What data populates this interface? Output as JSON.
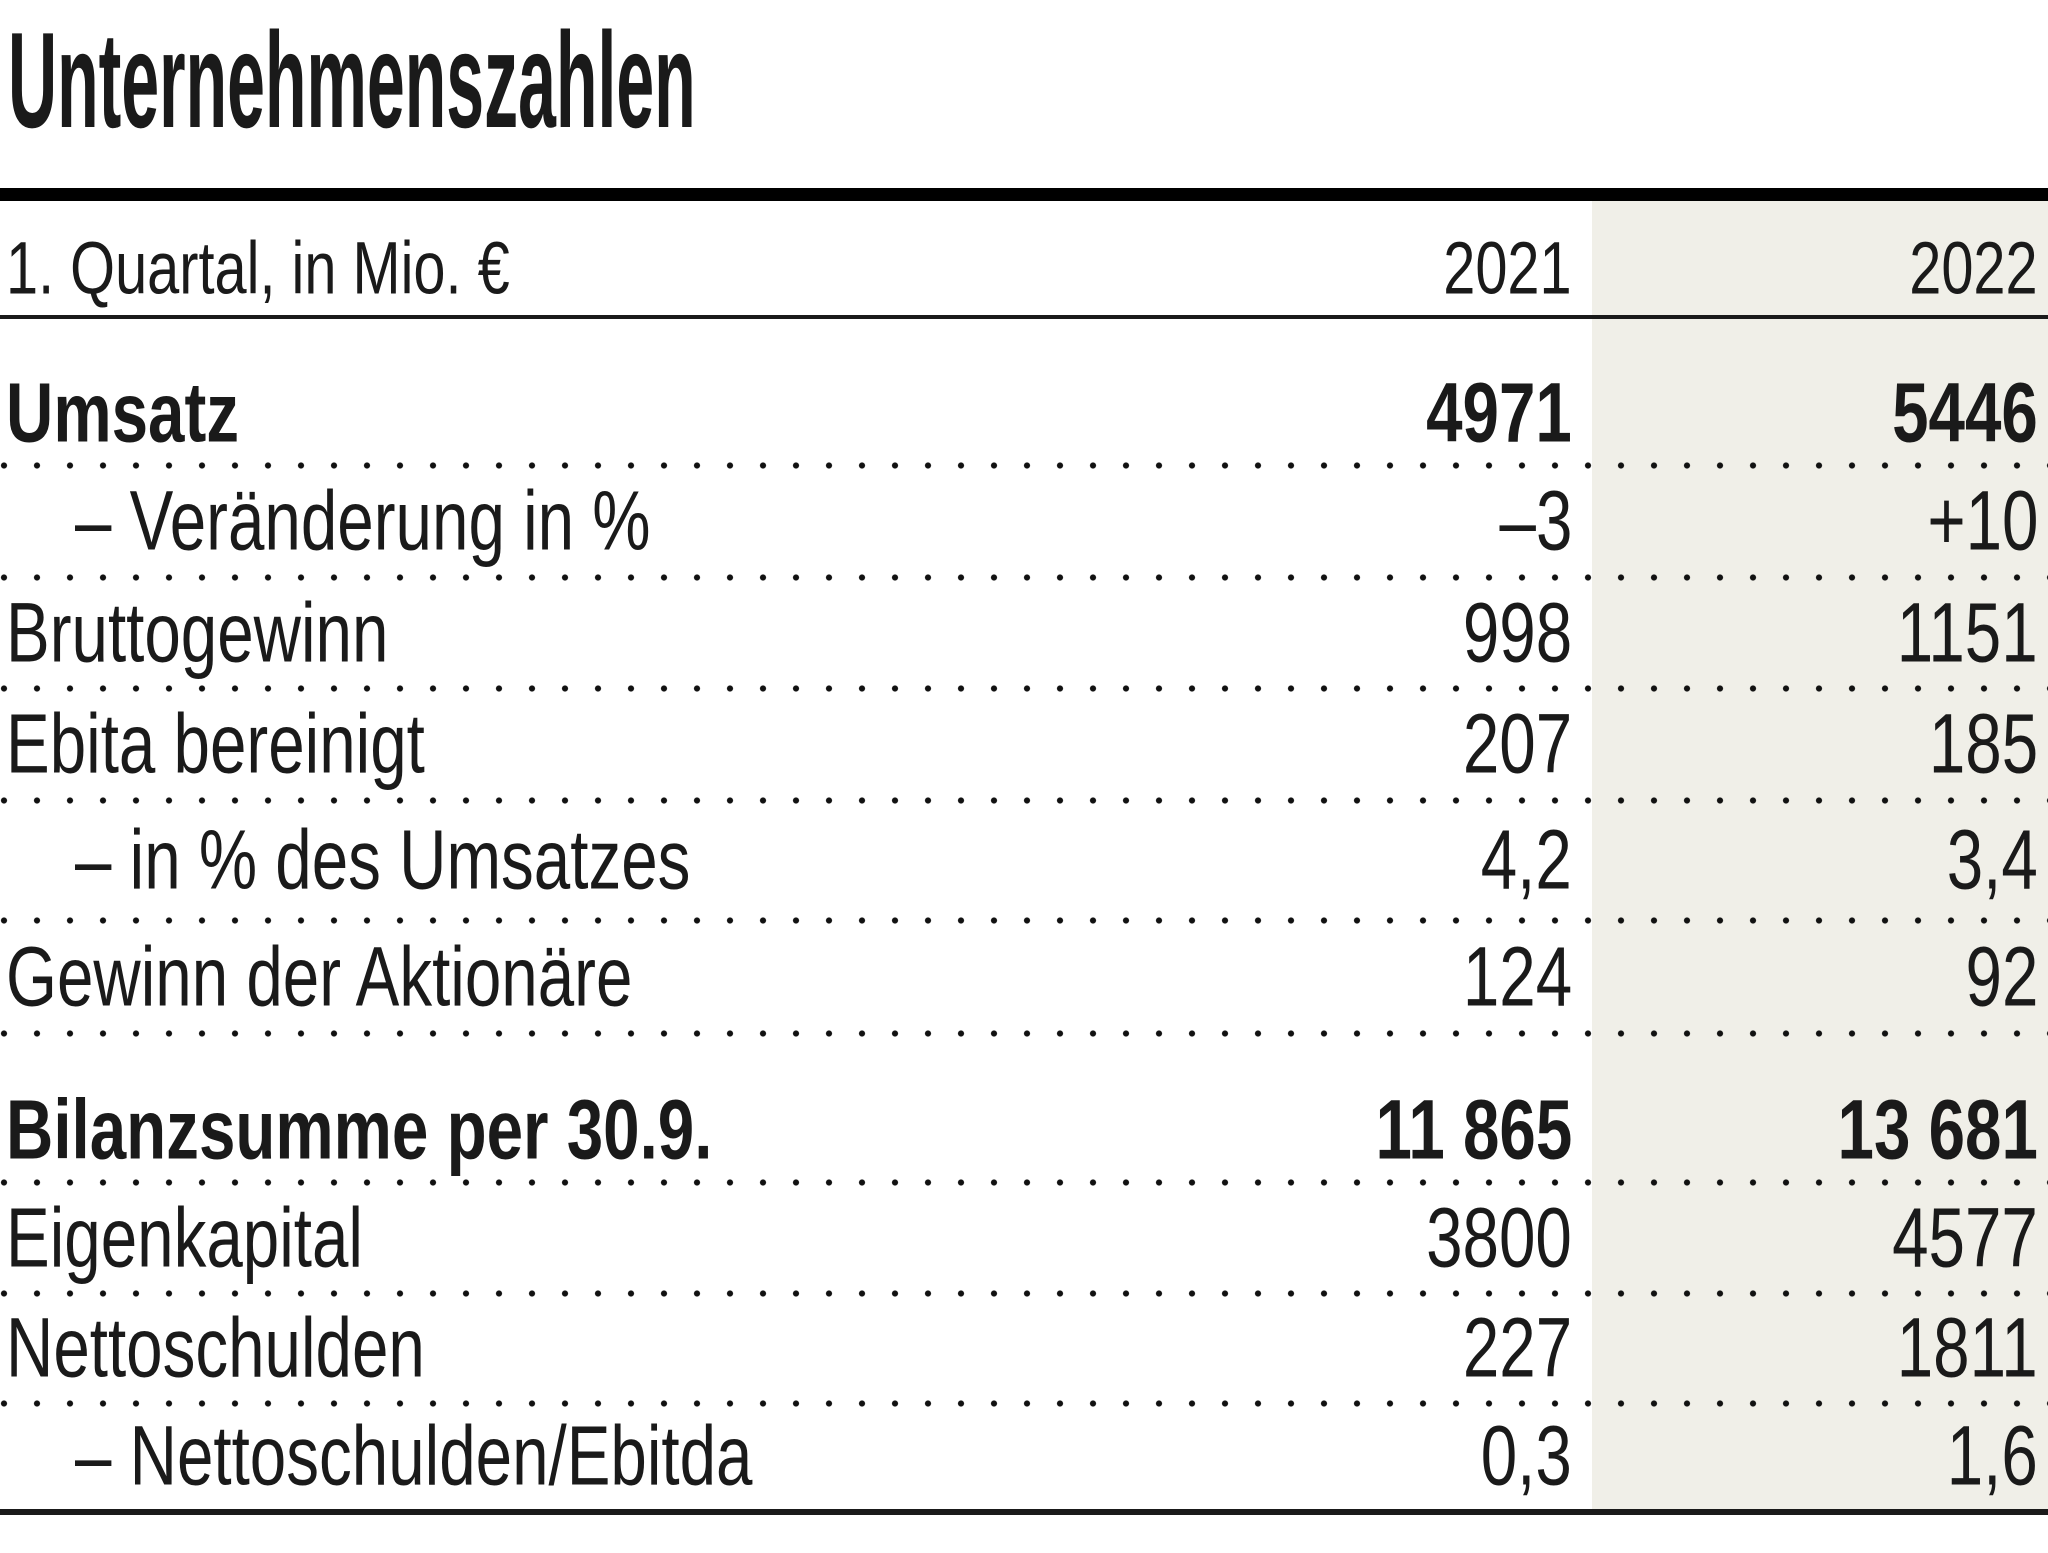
{
  "chart_data": {
    "type": "table",
    "title": "Unternehmenszahlen",
    "unit_label": "1. Quartal, in Mio. €",
    "columns": [
      "2021",
      "2022"
    ],
    "rows": [
      {
        "label": "Umsatz",
        "bold": true,
        "indent": false,
        "values": [
          "4971",
          "5446"
        ]
      },
      {
        "label": "– Veränderung in %",
        "bold": false,
        "indent": true,
        "values": [
          "–3",
          "+10"
        ]
      },
      {
        "label": "Bruttogewinn",
        "bold": false,
        "indent": false,
        "values": [
          "998",
          "1151"
        ]
      },
      {
        "label": "Ebita bereinigt",
        "bold": false,
        "indent": false,
        "values": [
          "207",
          "185"
        ]
      },
      {
        "label": "– in % des Umsatzes",
        "bold": false,
        "indent": true,
        "values": [
          "4,2",
          "3,4"
        ]
      },
      {
        "label": "Gewinn der Aktionäre",
        "bold": false,
        "indent": false,
        "values": [
          "124",
          "92"
        ]
      },
      {
        "label": "Bilanzsumme per 30.9.",
        "bold": true,
        "indent": false,
        "section_start": true,
        "values": [
          "11 865",
          "13 681"
        ]
      },
      {
        "label": "Eigenkapital",
        "bold": false,
        "indent": false,
        "values": [
          "3800",
          "4577"
        ]
      },
      {
        "label": "Nettoschulden",
        "bold": false,
        "indent": false,
        "values": [
          "227",
          "1811"
        ]
      },
      {
        "label": "– Nettoschulden/Ebitda",
        "bold": false,
        "indent": true,
        "values": [
          "0,3",
          "1,6"
        ]
      }
    ],
    "highlight_column": "2022",
    "grid": "dotted-row-separators",
    "legend_position": "none"
  },
  "colors": {
    "background": "#ffffff",
    "text": "#1a1a1a",
    "rule": "#000000",
    "highlight_column_bg": "#f0efe8"
  }
}
